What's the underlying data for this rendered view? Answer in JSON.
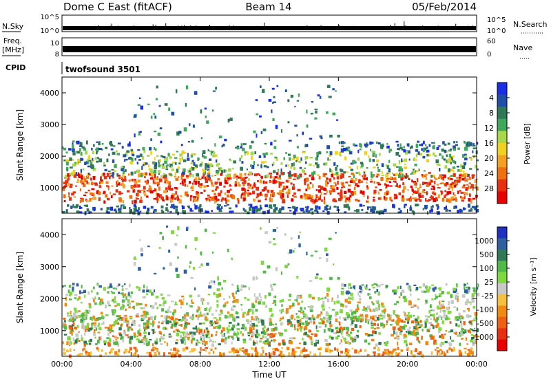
{
  "header": {
    "station": "Dome C East (fitACF)",
    "beam": "Beam 14",
    "date": "05/Feb/2014"
  },
  "status_panels": {
    "nsky": {
      "label": "N.Sky",
      "ticks": [
        "10^5",
        "10^0"
      ]
    },
    "nsearch": {
      "label": "N.Search",
      "ticks": [
        "10^5",
        "10^0"
      ]
    },
    "freq": {
      "label_top": "Freq.",
      "label_unit": "[MHz]",
      "ticks": [
        "10",
        "8"
      ]
    },
    "nave": {
      "label": "Nave",
      "ticks": [
        "60",
        "0"
      ]
    },
    "cpid": {
      "label": "CPID",
      "value": "twofsound 3501"
    }
  },
  "chart_data": [
    {
      "type": "heatmap",
      "panel": "power",
      "ylabel": "Slant Range [km]",
      "xlabel": "",
      "xlim_hours": [
        0,
        24
      ],
      "ylim": [
        200,
        4500
      ],
      "y_ticks": [
        "1000",
        "2000",
        "3000",
        "4000"
      ],
      "x_ticks": [
        "00:00",
        "04:00",
        "08:00",
        "12:00",
        "16:00",
        "20:00",
        "00:00"
      ],
      "colorbar": {
        "label": "Power [dB]",
        "tick_labels": [
          "4",
          "8",
          "12",
          "16",
          "20",
          "24",
          "28"
        ],
        "colors": [
          "#1a2ee8",
          "#1f4fa8",
          "#2f7a55",
          "#3fa85a",
          "#a8d84a",
          "#f0d020",
          "#f5a020",
          "#f07010",
          "#e83010",
          "#e80000"
        ]
      }
    },
    {
      "type": "heatmap",
      "panel": "velocity",
      "ylabel": "Slant Range [km]",
      "xlabel": "Time UT",
      "xlim_hours": [
        0,
        24
      ],
      "ylim": [
        200,
        4500
      ],
      "y_ticks": [
        "1000",
        "2000",
        "3000",
        "4000"
      ],
      "x_ticks": [
        "00:00",
        "04:00",
        "08:00",
        "12:00",
        "16:00",
        "20:00",
        "00:00"
      ],
      "colorbar": {
        "label": "Velocity [m s⁻¹]",
        "tick_labels": [
          "1000",
          "500",
          "100",
          "25",
          "-25",
          "-100",
          "-500",
          "-1000"
        ],
        "colors": [
          "#2030c0",
          "#2e5fa0",
          "#2f7a55",
          "#52b848",
          "#7fd840",
          "#c8c8c8",
          "#f5c040",
          "#f08a10",
          "#f06010",
          "#e83010",
          "#e80000"
        ]
      }
    }
  ]
}
